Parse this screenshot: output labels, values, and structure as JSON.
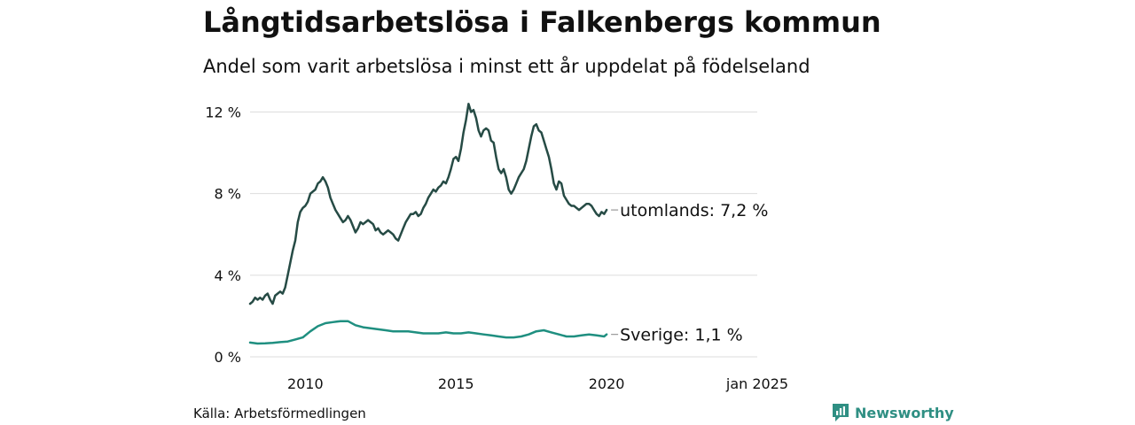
{
  "header": {
    "title": "Långtidsarbetslösa i Falkenbergs kommun",
    "subtitle": "Andel som varit arbetslösa i minst ett år uppdelat på födelseland"
  },
  "footer": {
    "source": "Källa: Arbetsförmedlingen",
    "brand": "Newsworthy",
    "brand_icon": "bar-chart-logo-icon"
  },
  "colors": {
    "utomlands": "#264b45",
    "sverige": "#1f8f80",
    "grid": "#dddddd",
    "brand": "#2f8f83"
  },
  "chart_data": {
    "type": "line",
    "title": "Långtidsarbetslösa i Falkenbergs kommun",
    "subtitle": "Andel som varit arbetslösa i minst ett år uppdelat på födelseland",
    "xlabel": "",
    "ylabel": "",
    "x_range": [
      "2008-03",
      "2025-01"
    ],
    "ylim": [
      0,
      12.5
    ],
    "y_ticks": [
      0,
      4,
      8,
      12
    ],
    "y_tick_labels": [
      "0 %",
      "4 %",
      "8 %",
      "12 %"
    ],
    "x_ticks": [
      "2010-01",
      "2015-01",
      "2020-01",
      "2025-01"
    ],
    "x_tick_labels": [
      "2010",
      "2015",
      "2020",
      "jan 2025"
    ],
    "grid": true,
    "legend": "end-of-line labels",
    "series": [
      {
        "name": "utomlands",
        "end_label": "utomlands: 7,2 %",
        "points": [
          [
            "2008-03",
            2.6
          ],
          [
            "2008-04",
            2.7
          ],
          [
            "2008-05",
            2.9
          ],
          [
            "2008-06",
            2.8
          ],
          [
            "2008-07",
            2.9
          ],
          [
            "2008-08",
            2.8
          ],
          [
            "2008-09",
            3.0
          ],
          [
            "2008-10",
            3.1
          ],
          [
            "2008-11",
            2.8
          ],
          [
            "2008-12",
            2.6
          ],
          [
            "2009-01",
            3.0
          ],
          [
            "2009-02",
            3.1
          ],
          [
            "2009-03",
            3.2
          ],
          [
            "2009-04",
            3.1
          ],
          [
            "2009-05",
            3.4
          ],
          [
            "2009-06",
            4.0
          ],
          [
            "2009-07",
            4.6
          ],
          [
            "2009-08",
            5.2
          ],
          [
            "2009-09",
            5.7
          ],
          [
            "2009-10",
            6.6
          ],
          [
            "2009-11",
            7.1
          ],
          [
            "2009-12",
            7.3
          ],
          [
            "2010-01",
            7.4
          ],
          [
            "2010-02",
            7.6
          ],
          [
            "2010-03",
            8.0
          ],
          [
            "2010-04",
            8.1
          ],
          [
            "2010-05",
            8.2
          ],
          [
            "2010-06",
            8.5
          ],
          [
            "2010-07",
            8.6
          ],
          [
            "2010-08",
            8.8
          ],
          [
            "2010-09",
            8.6
          ],
          [
            "2010-10",
            8.3
          ],
          [
            "2010-11",
            7.8
          ],
          [
            "2010-12",
            7.5
          ],
          [
            "2011-01",
            7.2
          ],
          [
            "2011-02",
            7.0
          ],
          [
            "2011-03",
            6.8
          ],
          [
            "2011-04",
            6.6
          ],
          [
            "2011-05",
            6.7
          ],
          [
            "2011-06",
            6.9
          ],
          [
            "2011-07",
            6.7
          ],
          [
            "2011-08",
            6.4
          ],
          [
            "2011-09",
            6.1
          ],
          [
            "2011-10",
            6.3
          ],
          [
            "2011-11",
            6.6
          ],
          [
            "2011-12",
            6.5
          ],
          [
            "2012-01",
            6.6
          ],
          [
            "2012-02",
            6.7
          ],
          [
            "2012-03",
            6.6
          ],
          [
            "2012-04",
            6.5
          ],
          [
            "2012-05",
            6.2
          ],
          [
            "2012-06",
            6.3
          ],
          [
            "2012-07",
            6.1
          ],
          [
            "2012-08",
            6.0
          ],
          [
            "2012-09",
            6.1
          ],
          [
            "2012-10",
            6.2
          ],
          [
            "2012-11",
            6.1
          ],
          [
            "2012-12",
            6.0
          ],
          [
            "2013-01",
            5.8
          ],
          [
            "2013-02",
            5.7
          ],
          [
            "2013-03",
            6.0
          ],
          [
            "2013-04",
            6.3
          ],
          [
            "2013-05",
            6.6
          ],
          [
            "2013-06",
            6.8
          ],
          [
            "2013-07",
            7.0
          ],
          [
            "2013-08",
            7.0
          ],
          [
            "2013-09",
            7.1
          ],
          [
            "2013-10",
            6.9
          ],
          [
            "2013-11",
            7.0
          ],
          [
            "2013-12",
            7.3
          ],
          [
            "2014-01",
            7.5
          ],
          [
            "2014-02",
            7.8
          ],
          [
            "2014-03",
            8.0
          ],
          [
            "2014-04",
            8.2
          ],
          [
            "2014-05",
            8.1
          ],
          [
            "2014-06",
            8.3
          ],
          [
            "2014-07",
            8.4
          ],
          [
            "2014-08",
            8.6
          ],
          [
            "2014-09",
            8.5
          ],
          [
            "2014-10",
            8.8
          ],
          [
            "2014-11",
            9.2
          ],
          [
            "2014-12",
            9.7
          ],
          [
            "2015-01",
            9.8
          ],
          [
            "2015-02",
            9.6
          ],
          [
            "2015-03",
            10.2
          ],
          [
            "2015-04",
            11.0
          ],
          [
            "2015-05",
            11.6
          ],
          [
            "2015-06",
            12.4
          ],
          [
            "2015-07",
            12.0
          ],
          [
            "2015-08",
            12.1
          ],
          [
            "2015-09",
            11.7
          ],
          [
            "2015-10",
            11.1
          ],
          [
            "2015-11",
            10.8
          ],
          [
            "2015-12",
            11.1
          ],
          [
            "2016-01",
            11.2
          ],
          [
            "2016-02",
            11.1
          ],
          [
            "2016-03",
            10.6
          ],
          [
            "2016-04",
            10.5
          ],
          [
            "2016-05",
            9.8
          ],
          [
            "2016-06",
            9.2
          ],
          [
            "2016-07",
            9.0
          ],
          [
            "2016-08",
            9.2
          ],
          [
            "2016-09",
            8.8
          ],
          [
            "2016-10",
            8.2
          ],
          [
            "2016-11",
            8.0
          ],
          [
            "2016-12",
            8.2
          ],
          [
            "2017-01",
            8.5
          ],
          [
            "2017-02",
            8.8
          ],
          [
            "2017-03",
            9.0
          ],
          [
            "2017-04",
            9.2
          ],
          [
            "2017-05",
            9.6
          ],
          [
            "2017-06",
            10.2
          ],
          [
            "2017-07",
            10.8
          ],
          [
            "2017-08",
            11.3
          ],
          [
            "2017-09",
            11.4
          ],
          [
            "2017-10",
            11.1
          ],
          [
            "2017-11",
            11.0
          ],
          [
            "2017-12",
            10.6
          ],
          [
            "2018-01",
            10.2
          ],
          [
            "2018-02",
            9.8
          ],
          [
            "2018-03",
            9.2
          ],
          [
            "2018-04",
            8.5
          ],
          [
            "2018-05",
            8.2
          ],
          [
            "2018-06",
            8.6
          ],
          [
            "2018-07",
            8.5
          ],
          [
            "2018-08",
            7.9
          ],
          [
            "2018-09",
            7.7
          ],
          [
            "2018-10",
            7.5
          ],
          [
            "2018-11",
            7.4
          ],
          [
            "2018-12",
            7.4
          ],
          [
            "2019-01",
            7.3
          ],
          [
            "2019-02",
            7.2
          ],
          [
            "2019-03",
            7.3
          ],
          [
            "2019-04",
            7.4
          ],
          [
            "2019-05",
            7.5
          ],
          [
            "2019-06",
            7.5
          ],
          [
            "2019-07",
            7.4
          ],
          [
            "2019-08",
            7.2
          ],
          [
            "2019-09",
            7.0
          ],
          [
            "2019-10",
            6.9
          ],
          [
            "2019-11",
            7.1
          ],
          [
            "2019-12",
            7.0
          ],
          [
            "2020-01",
            7.2
          ]
        ]
      },
      {
        "name": "Sverige",
        "end_label": "Sverige: 1,1 %",
        "points": [
          [
            "2008-03",
            0.7
          ],
          [
            "2008-06",
            0.65
          ],
          [
            "2008-09",
            0.66
          ],
          [
            "2008-12",
            0.68
          ],
          [
            "2009-03",
            0.72
          ],
          [
            "2009-06",
            0.75
          ],
          [
            "2009-09",
            0.85
          ],
          [
            "2009-12",
            0.95
          ],
          [
            "2010-03",
            1.25
          ],
          [
            "2010-06",
            1.5
          ],
          [
            "2010-09",
            1.65
          ],
          [
            "2010-12",
            1.7
          ],
          [
            "2011-03",
            1.75
          ],
          [
            "2011-06",
            1.75
          ],
          [
            "2011-09",
            1.55
          ],
          [
            "2011-12",
            1.45
          ],
          [
            "2012-03",
            1.4
          ],
          [
            "2012-06",
            1.35
          ],
          [
            "2012-09",
            1.3
          ],
          [
            "2012-12",
            1.25
          ],
          [
            "2013-03",
            1.25
          ],
          [
            "2013-06",
            1.25
          ],
          [
            "2013-09",
            1.2
          ],
          [
            "2013-12",
            1.15
          ],
          [
            "2014-03",
            1.15
          ],
          [
            "2014-06",
            1.15
          ],
          [
            "2014-09",
            1.2
          ],
          [
            "2014-12",
            1.15
          ],
          [
            "2015-03",
            1.15
          ],
          [
            "2015-06",
            1.2
          ],
          [
            "2015-09",
            1.15
          ],
          [
            "2015-12",
            1.1
          ],
          [
            "2016-03",
            1.05
          ],
          [
            "2016-06",
            1.0
          ],
          [
            "2016-09",
            0.95
          ],
          [
            "2016-12",
            0.95
          ],
          [
            "2017-03",
            1.0
          ],
          [
            "2017-06",
            1.1
          ],
          [
            "2017-09",
            1.25
          ],
          [
            "2017-12",
            1.3
          ],
          [
            "2018-03",
            1.2
          ],
          [
            "2018-06",
            1.1
          ],
          [
            "2018-09",
            1.0
          ],
          [
            "2018-12",
            1.0
          ],
          [
            "2019-03",
            1.05
          ],
          [
            "2019-06",
            1.1
          ],
          [
            "2019-09",
            1.05
          ],
          [
            "2019-12",
            1.0
          ],
          [
            "2020-01",
            1.1
          ]
        ]
      }
    ]
  }
}
